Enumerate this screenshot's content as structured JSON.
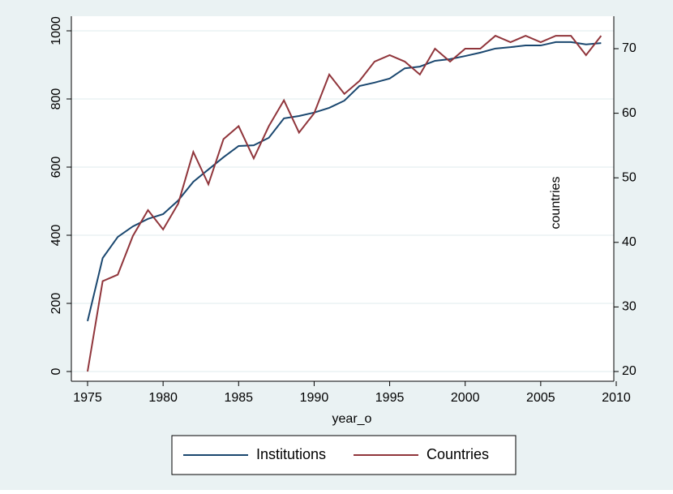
{
  "chart_data": {
    "type": "line",
    "x": [
      1975,
      1976,
      1977,
      1978,
      1979,
      1980,
      1981,
      1982,
      1983,
      1984,
      1985,
      1986,
      1987,
      1988,
      1989,
      1990,
      1991,
      1992,
      1993,
      1994,
      1995,
      1996,
      1997,
      1998,
      1999,
      2000,
      2001,
      2002,
      2003,
      2004,
      2005,
      2006,
      2007,
      2008,
      2009
    ],
    "series": [
      {
        "name": "Institutions",
        "color": "#1a476f",
        "values": [
          148,
          333,
          395,
          426,
          448,
          462,
          502,
          557,
          593,
          629,
          662,
          664,
          686,
          743,
          750,
          760,
          774,
          795,
          838,
          848,
          860,
          890,
          895,
          912,
          917,
          926,
          936,
          948,
          952,
          957,
          957,
          967,
          967,
          960,
          964
        ]
      },
      {
        "name": "Countries",
        "color": "#90353b",
        "axis": "y2",
        "values": [
          20,
          34,
          35,
          41,
          45,
          42,
          46,
          54,
          49,
          56,
          58,
          53,
          58,
          62,
          57,
          60,
          66,
          63,
          65,
          68,
          69,
          68,
          66,
          70,
          68,
          70,
          70,
          72,
          71,
          72,
          71,
          72,
          72,
          69,
          72
        ]
      }
    ],
    "xlabel": "year_o",
    "annotation": "countries",
    "xlim": [
      1975,
      2010
    ],
    "xticks": [
      1975,
      1980,
      1985,
      1990,
      1995,
      2000,
      2005,
      2010
    ],
    "ylim": [
      0,
      1000
    ],
    "yticks": [
      0,
      200,
      400,
      600,
      800,
      1000
    ],
    "y2lim": [
      20,
      70
    ],
    "y2ticks": [
      20,
      30,
      40,
      50,
      60,
      70
    ],
    "grid": true,
    "legend": "bottom"
  }
}
